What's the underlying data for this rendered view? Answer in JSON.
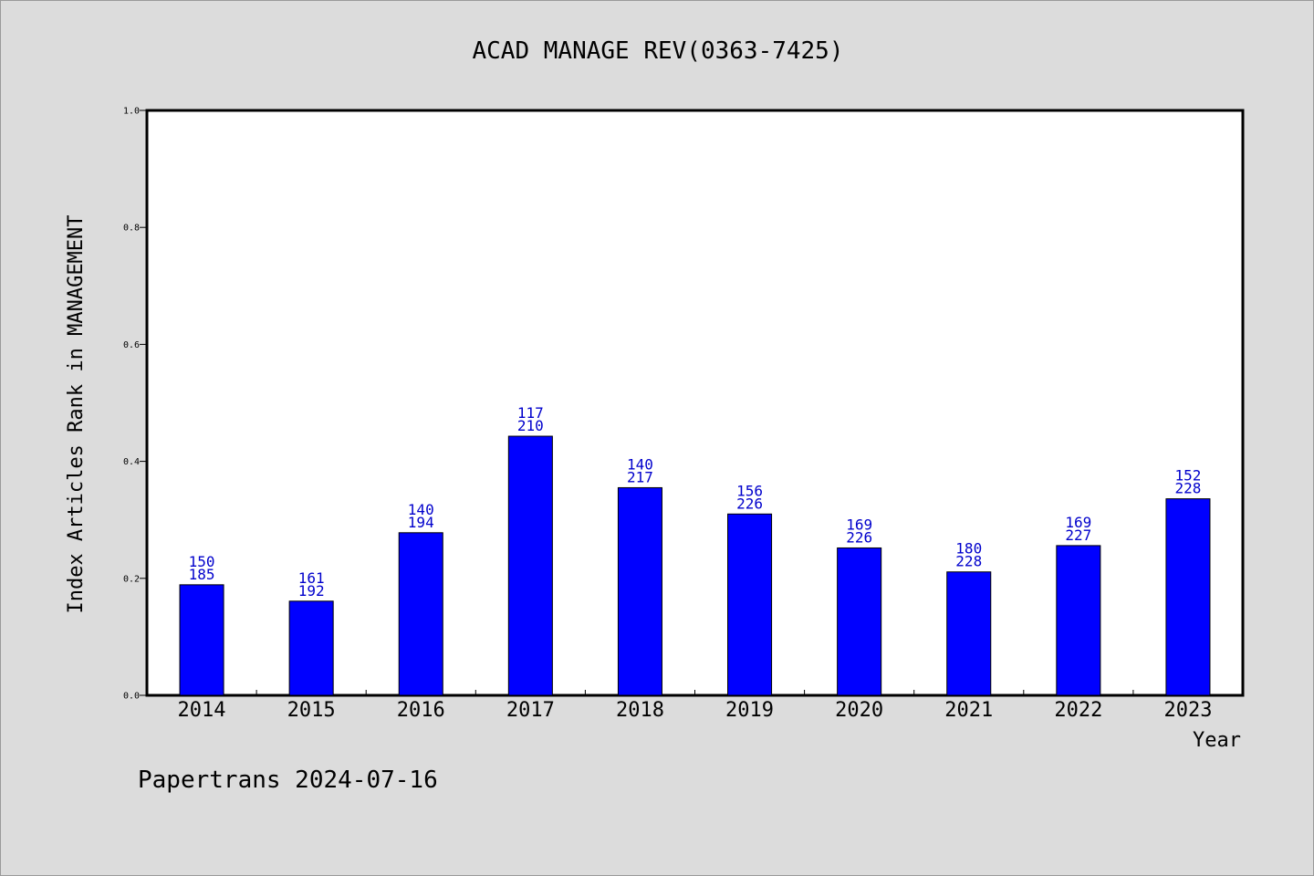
{
  "chart_data": {
    "type": "bar",
    "title": "ACAD MANAGE REV(0363-7425)",
    "xlabel": "Year",
    "ylabel": "Index Articles Rank in MANAGEMENT",
    "ylim": [
      0,
      1.0
    ],
    "yticks": [
      "0.0",
      "0.2",
      "0.4",
      "0.6",
      "0.8",
      "1.0"
    ],
    "grid": false,
    "legend": "none",
    "bar_color": "#0000ff",
    "label_color": "#0000cc",
    "categories": [
      "2014",
      "2015",
      "2016",
      "2017",
      "2018",
      "2019",
      "2020",
      "2021",
      "2022",
      "2023"
    ],
    "values": [
      0.189,
      0.161,
      0.278,
      0.443,
      0.355,
      0.31,
      0.252,
      0.211,
      0.256,
      0.336
    ],
    "labels_top": [
      "150",
      "161",
      "140",
      "117",
      "140",
      "156",
      "169",
      "180",
      "169",
      "152"
    ],
    "labels_bottom": [
      "185",
      "192",
      "194",
      "210",
      "217",
      "226",
      "226",
      "228",
      "227",
      "228"
    ]
  },
  "footer": {
    "text": "Papertrans 2024-07-16"
  }
}
